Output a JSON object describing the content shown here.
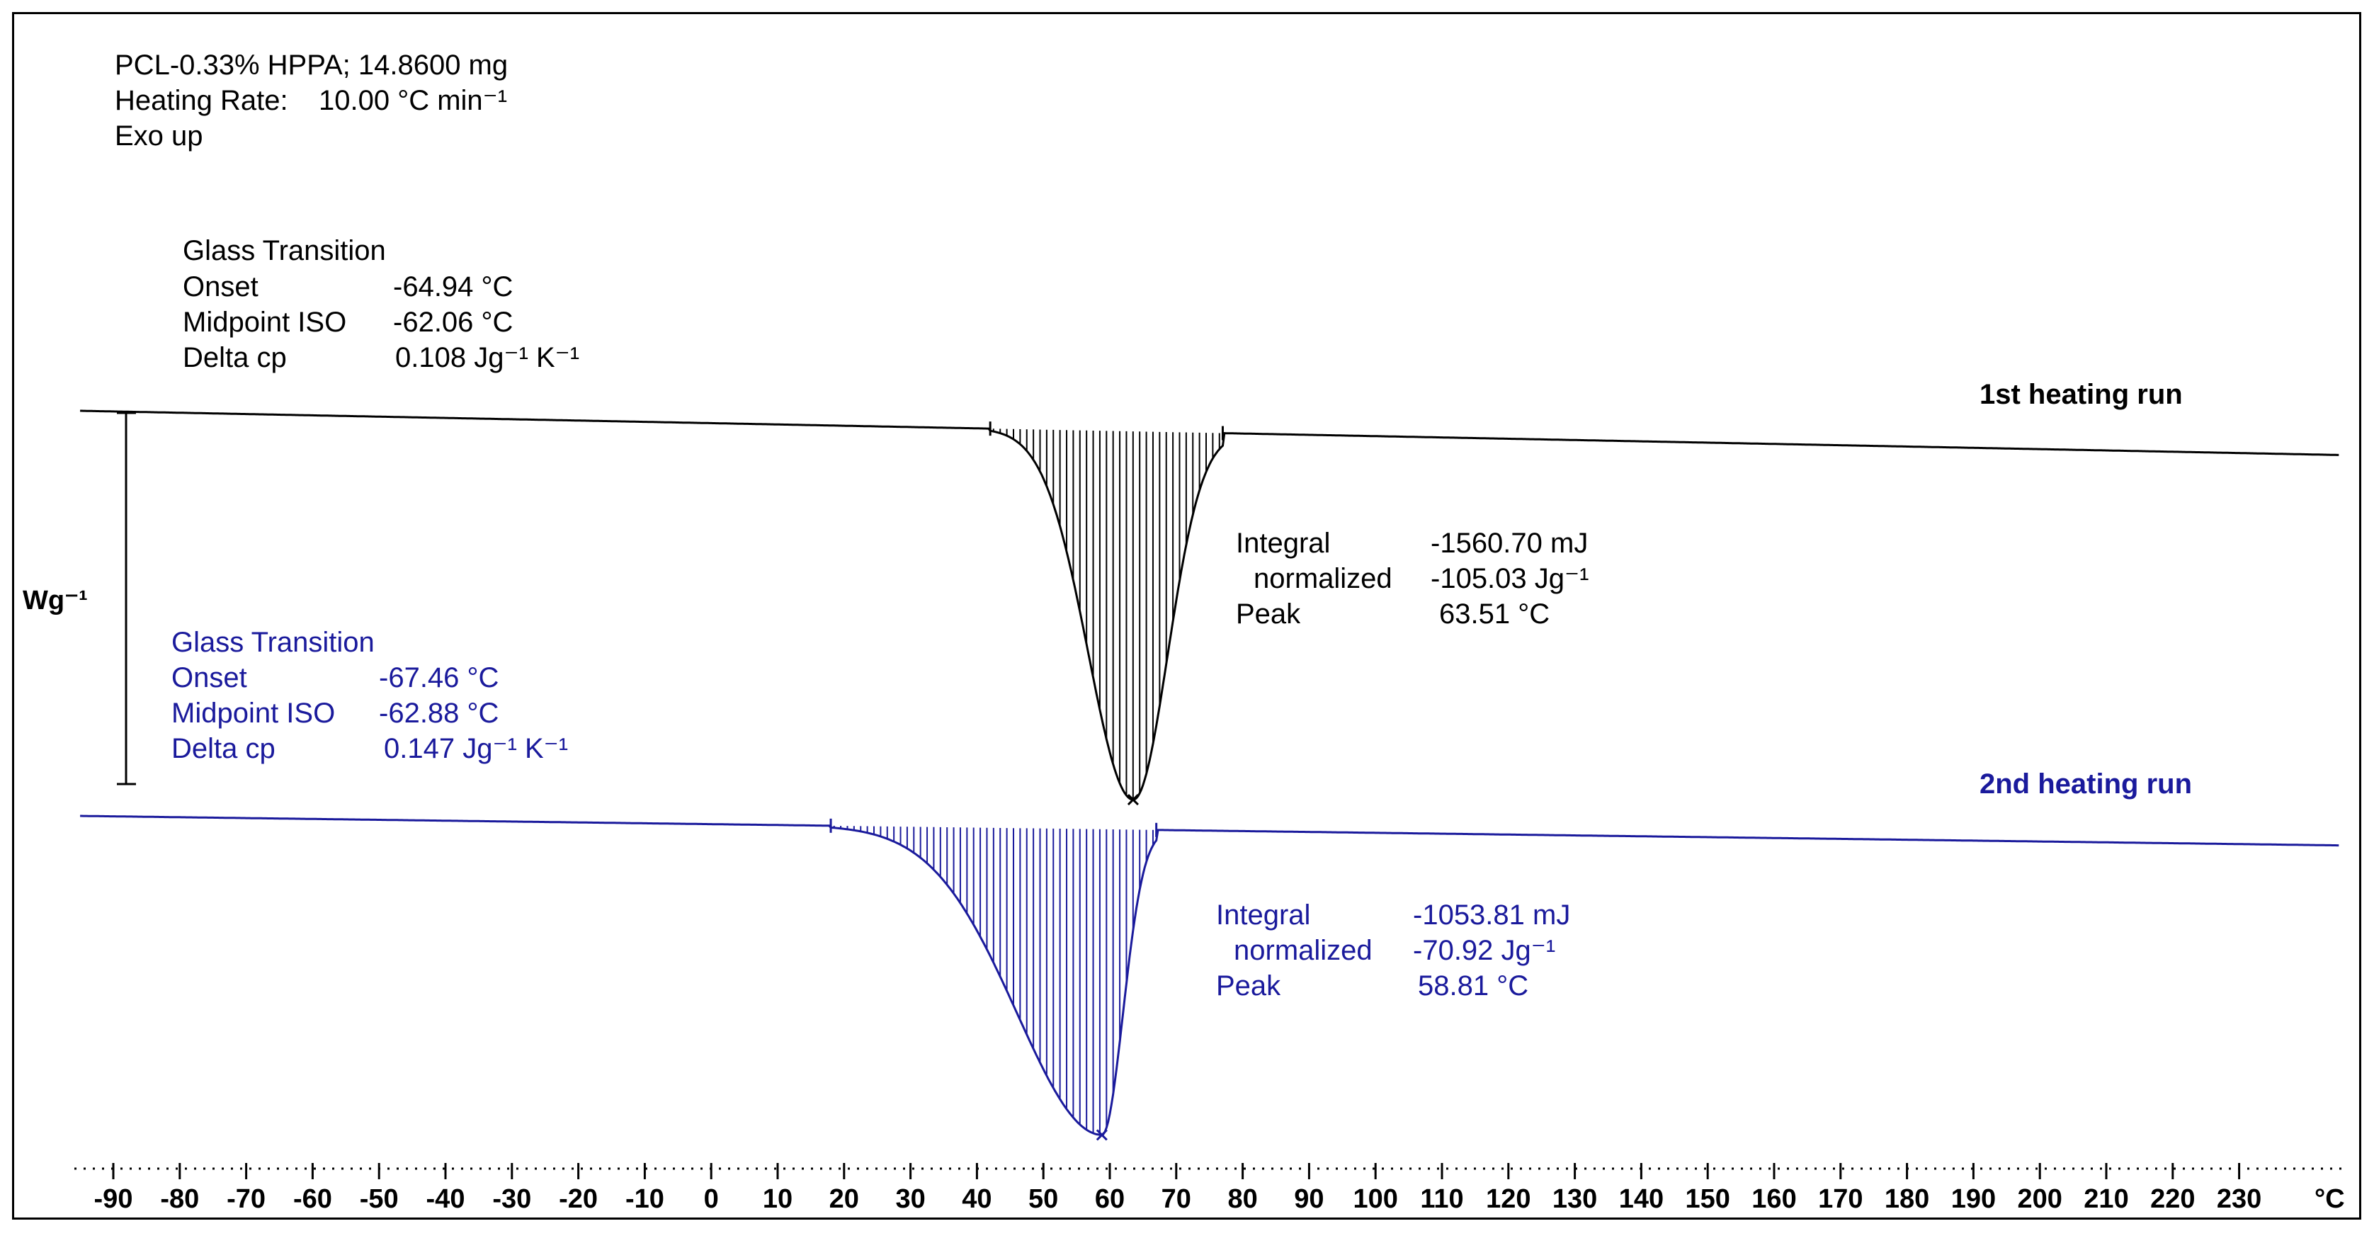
{
  "header": {
    "sample": "PCL-0.33%  HPPA; 14.8600 mg",
    "heating_rate_label": "Heating Rate:",
    "heating_rate_value": "10.00 °C min⁻¹",
    "exo": "Exo up"
  },
  "colors": {
    "run1": "#000000",
    "run2": "#1a1a9c",
    "frame": "#000000"
  },
  "chart_data": {
    "type": "line",
    "title": "",
    "xlabel": "°C",
    "ylabel": "Wg⁻¹",
    "x_unit": "°C",
    "xlim": [
      -95,
      245
    ],
    "x_ticks": [
      -90,
      -80,
      -70,
      -60,
      -50,
      -40,
      -30,
      -20,
      -10,
      0,
      10,
      20,
      30,
      40,
      50,
      60,
      70,
      80,
      90,
      100,
      110,
      120,
      130,
      140,
      150,
      160,
      170,
      180,
      190,
      200,
      210,
      220,
      230
    ],
    "series": [
      {
        "name": "1st heating run",
        "color": "#000000",
        "baseline": {
          "x_start": -95,
          "x_end": 245,
          "y_start": 0.0,
          "y_end": -0.12
        },
        "glass_transition": {
          "title": "Glass Transition",
          "onset_label": "Onset",
          "onset": "-64.94 °C",
          "midpoint_label": "Midpoint ISO",
          "midpoint": "-62.06 °C",
          "delta_cp_label": "Delta cp",
          "delta_cp": "0.108 Jg⁻¹ K⁻¹"
        },
        "peak_region": {
          "x_start": 42,
          "x_end": 77,
          "peak_x": 63.51,
          "peak_depth": -1.0
        },
        "integral": {
          "integral_label": "Integral",
          "integral": "-1560.70 mJ",
          "normalized_label": "normalized",
          "normalized": "-105.03 Jg⁻¹",
          "peak_label": "Peak",
          "peak": "63.51 °C"
        }
      },
      {
        "name": "2nd heating run",
        "color": "#1a1a9c",
        "baseline": {
          "x_start": -95,
          "x_end": 245,
          "y_start": -1.1,
          "y_end": -1.18
        },
        "glass_transition": {
          "title": "Glass Transition",
          "onset_label": "Onset",
          "onset": "-67.46 °C",
          "midpoint_label": "Midpoint ISO",
          "midpoint": "-62.88 °C",
          "delta_cp_label": "Delta cp",
          "delta_cp": "0.147 Jg⁻¹ K⁻¹"
        },
        "peak_region": {
          "x_start": 18,
          "x_end": 67,
          "peak_x": 58.81,
          "peak_depth": -0.83
        },
        "integral": {
          "integral_label": "Integral",
          "integral": "-1053.81 mJ",
          "normalized_label": "normalized",
          "normalized": "-70.92 Jg⁻¹",
          "peak_label": "Peak",
          "peak": "58.81 °C"
        }
      }
    ]
  }
}
